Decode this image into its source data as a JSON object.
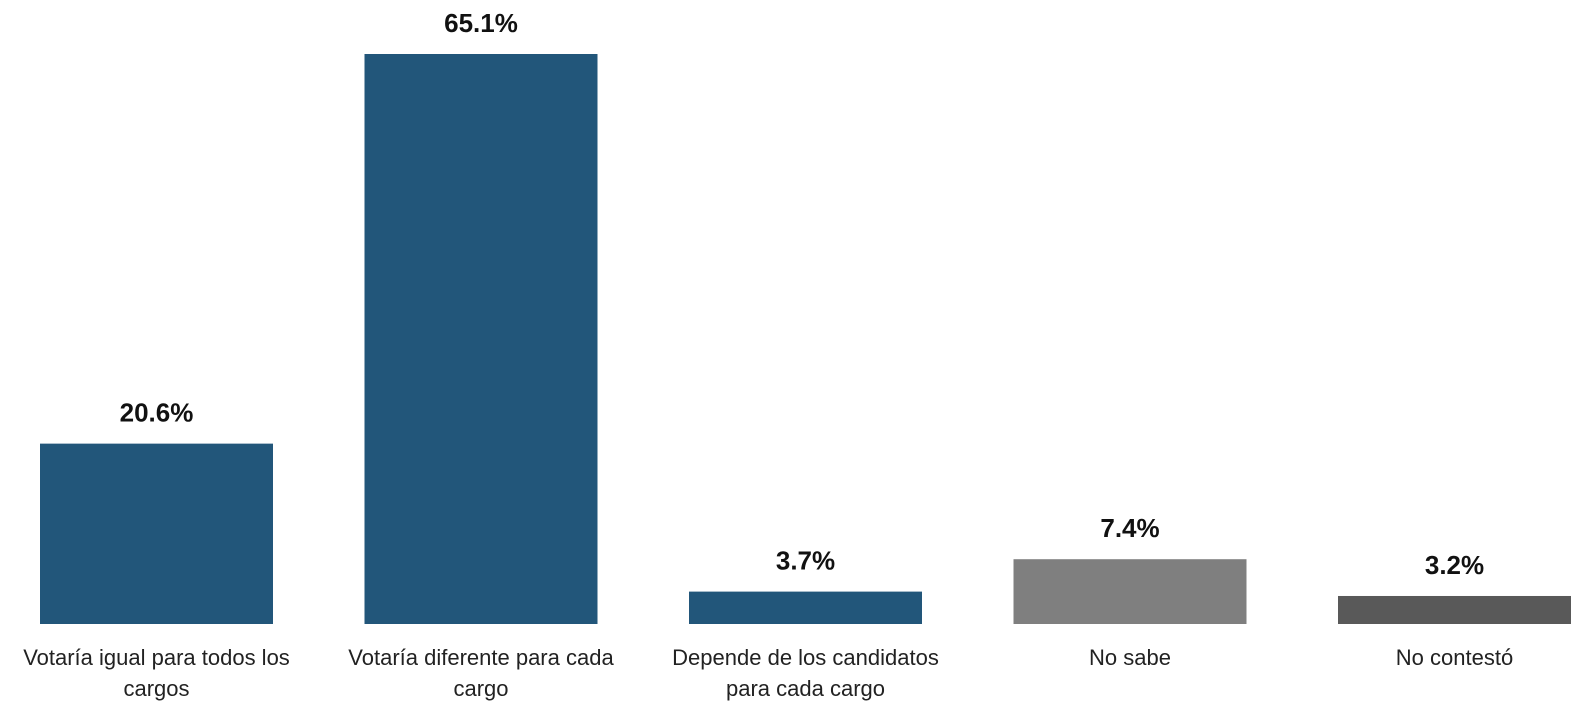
{
  "chart_data": {
    "type": "bar",
    "categories": [
      "Votaría igual para todos los cargos",
      "Votaría diferente para cada cargo",
      "Depende de los candidatos para cada cargo",
      "No sabe",
      "No contestó"
    ],
    "values": [
      20.6,
      65.1,
      3.7,
      7.4,
      3.2
    ],
    "value_labels": [
      "20.6%",
      "65.1%",
      "3.7%",
      "7.4%",
      "3.2%"
    ],
    "colors": [
      "#22567a",
      "#22567a",
      "#22567a",
      "#7f7f7f",
      "#595959"
    ]
  }
}
